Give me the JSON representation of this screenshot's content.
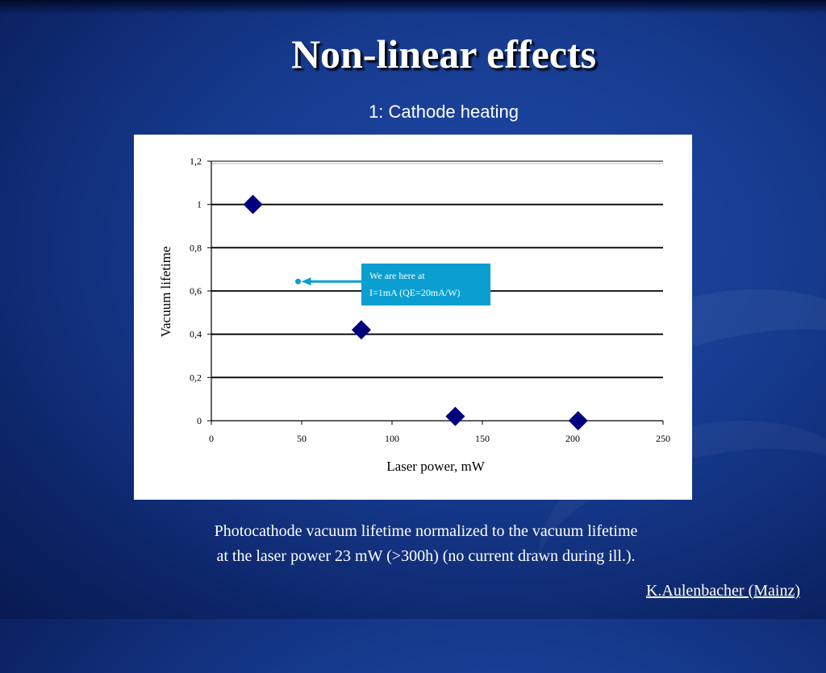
{
  "slide": {
    "title": "Non-linear effects",
    "subtitle": "1: Cathode heating",
    "caption_line1": "Photocathode vacuum lifetime normalized to the vacuum lifetime",
    "caption_line2": "at the laser power 23 mW (>300h) (no current drawn during ill.).",
    "credit": "K.Aulenbacher (Mainz)"
  },
  "colors": {
    "background": "#163a8e",
    "marker": "#00007f",
    "callout": "#0a9fd0"
  },
  "chart_data": {
    "type": "scatter",
    "title": "",
    "xlabel": "Laser power, mW",
    "ylabel": "Vacuum lifetime",
    "xlim": [
      0,
      250
    ],
    "ylim": [
      0,
      1.2
    ],
    "x_ticks": [
      0,
      50,
      100,
      150,
      200,
      250
    ],
    "x_tick_labels": [
      "0",
      "50",
      "100",
      "150",
      "200",
      "250"
    ],
    "y_ticks": [
      0,
      0.2,
      0.4,
      0.6,
      0.8,
      1,
      1.2
    ],
    "y_tick_labels": [
      "0",
      "0,2",
      "0,4",
      "0,6",
      "0,8",
      "1",
      "1,2"
    ],
    "grid": true,
    "legend": "none",
    "series": [
      {
        "marker": "diamond",
        "points": [
          {
            "x": 23,
            "y": 1.0
          },
          {
            "x": 83,
            "y": 0.42
          },
          {
            "x": 135,
            "y": 0.02
          },
          {
            "x": 203,
            "y": 0.0
          }
        ]
      }
    ],
    "annotation": {
      "line1": "We are here at",
      "line2": "I=1mA (QE=20mA/W)",
      "arrow_to": {
        "x": 48,
        "y": 0.64
      }
    }
  }
}
